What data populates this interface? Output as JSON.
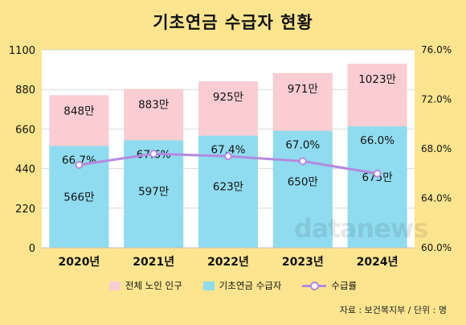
{
  "title": "기초연금 수급자 현황",
  "source": "자료 : 보건복지부 / 단위 : 명",
  "watermark": "datanews",
  "legend": {
    "total": "전체 노인 인구",
    "recipients": "기초연금 수급자",
    "rate": "수급률"
  },
  "colors": {
    "background": "#fde58f",
    "plot_background": "#ffffff",
    "total_bar": "#f9cdd2",
    "recipient_bar": "#8fdcf0",
    "rate_line": "#b48adf"
  },
  "chart_data": {
    "type": "bar",
    "stacked": "overlay",
    "categories": [
      "2020년",
      "2021년",
      "2022년",
      "2023년",
      "2024년"
    ],
    "series": [
      {
        "name": "전체 노인 인구",
        "values": [
          848,
          883,
          925,
          971,
          1023
        ],
        "labels": [
          "848만",
          "883만",
          "925만",
          "971만",
          "1023만"
        ]
      },
      {
        "name": "기초연금 수급자",
        "values": [
          566,
          597,
          623,
          650,
          675
        ],
        "labels": [
          "566만",
          "597만",
          "623만",
          "650만",
          "675만"
        ]
      },
      {
        "name": "수급률",
        "type": "line",
        "axis": "right",
        "values": [
          66.7,
          67.6,
          67.4,
          67.0,
          66.0
        ],
        "labels": [
          "66.7%",
          "67.6%",
          "67.4%",
          "67.0%",
          "66.0%"
        ]
      }
    ],
    "ylim": [
      0,
      1100
    ],
    "yticks": [
      "0",
      "220",
      "440",
      "660",
      "880",
      "1100"
    ],
    "y2lim": [
      60,
      76
    ],
    "y2ticks": [
      "60.0%",
      "64.0%",
      "68.0%",
      "72.0%",
      "76.0%"
    ],
    "grid": true,
    "legend_position": "bottom"
  }
}
